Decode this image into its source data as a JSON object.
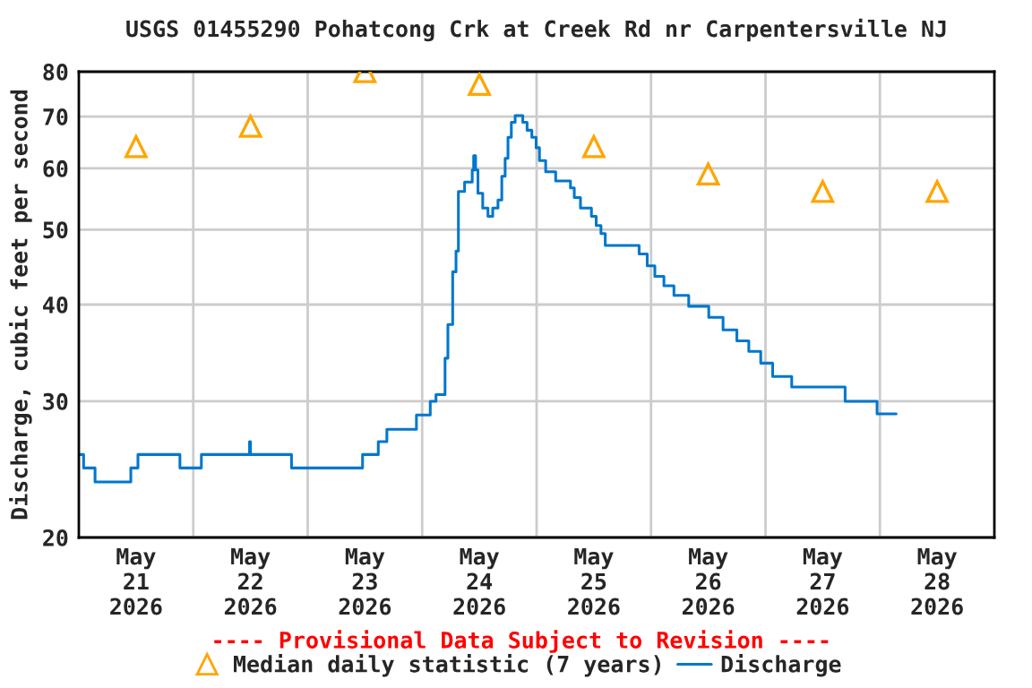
{
  "chart_data": {
    "type": "step",
    "title": "USGS 01455290 Pohatcong Crk at Creek Rd nr Carpentersville NJ",
    "ylabel": "Discharge, cubic feet per second",
    "annotations": [
      "---- Provisional Data Subject to Revision ----"
    ],
    "log": "y",
    "grid": true,
    "legend": "bottom",
    "xlim": [
      "2026-05-21T00:00",
      "2026-05-29T00:00"
    ],
    "xticks": [
      {
        "value": "2026-05-21T12:00",
        "label": "May\n21\n2026"
      },
      {
        "value": "2026-05-22T12:00",
        "label": "May\n22\n2026"
      },
      {
        "value": "2026-05-23T12:00",
        "label": "May\n23\n2026"
      },
      {
        "value": "2026-05-24T12:00",
        "label": "May\n24\n2026"
      },
      {
        "value": "2026-05-25T12:00",
        "label": "May\n25\n2026"
      },
      {
        "value": "2026-05-26T12:00",
        "label": "May\n26\n2026"
      },
      {
        "value": "2026-05-27T12:00",
        "label": "May\n27\n2026"
      },
      {
        "value": "2026-05-28T12:00",
        "label": "May\n28\n2026"
      },
      {
        "value": "2026-05-22T00:00",
        "label": null
      },
      {
        "value": "2026-05-23T00:00",
        "label": null
      },
      {
        "value": "2026-05-24T00:00",
        "label": null
      },
      {
        "value": "2026-05-25T00:00",
        "label": null
      },
      {
        "value": "2026-05-26T00:00",
        "label": null
      },
      {
        "value": "2026-05-27T00:00",
        "label": null
      },
      {
        "value": "2026-05-28T00:00",
        "label": null
      }
    ],
    "ylim": [
      20,
      80
    ],
    "yticks": [
      20,
      30,
      40,
      50,
      60,
      70,
      80
    ],
    "series": [
      {
        "name": "Median daily statistic (7 years)",
        "type": "scatter",
        "marker": "triangle",
        "color": "#ffa500",
        "x": [
          "2026-05-21T12:00",
          "2026-05-22T12:00",
          "2026-05-23T12:00",
          "2026-05-24T12:00",
          "2026-05-25T12:00",
          "2026-05-26T12:00",
          "2026-05-27T12:00",
          "2026-05-28T12:00"
        ],
        "values": [
          64,
          68,
          80,
          77,
          64,
          59,
          56,
          56
        ]
      },
      {
        "name": "Discharge",
        "color": "#0077cc",
        "x": [
          "2026-05-21T00:00",
          "2026-05-21T01:00",
          "2026-05-21T03:24",
          "2026-05-21T10:54",
          "2026-05-21T12:24",
          "2026-05-21T21:12",
          "2026-05-22T01:42",
          "2026-05-22T11:48",
          "2026-05-22T12:00",
          "2026-05-22T20:36",
          "2026-05-23T11:30",
          "2026-05-23T14:48",
          "2026-05-23T16:36",
          "2026-05-23T22:48",
          "2026-05-24T01:42",
          "2026-05-24T02:54",
          "2026-05-24T04:48",
          "2026-05-24T05:24",
          "2026-05-24T06:24",
          "2026-05-24T07:06",
          "2026-05-24T07:36",
          "2026-05-24T08:54",
          "2026-05-24T10:30",
          "2026-05-24T10:48",
          "2026-05-24T11:12",
          "2026-05-24T11:42",
          "2026-05-24T12:42",
          "2026-05-24T13:48",
          "2026-05-24T14:48",
          "2026-05-24T15:54",
          "2026-05-24T16:42",
          "2026-05-24T17:24",
          "2026-05-24T18:00",
          "2026-05-24T18:42",
          "2026-05-24T19:30",
          "2026-05-24T21:06",
          "2026-05-24T22:00",
          "2026-05-24T23:00",
          "2026-05-24T23:54",
          "2026-05-25T00:36",
          "2026-05-25T01:54",
          "2026-05-25T04:00",
          "2026-05-25T07:06",
          "2026-05-25T07:54",
          "2026-05-25T09:12",
          "2026-05-25T11:30",
          "2026-05-25T12:30",
          "2026-05-25T13:30",
          "2026-05-25T14:24",
          "2026-05-25T21:30",
          "2026-05-25T23:12",
          "2026-05-26T00:48",
          "2026-05-26T02:42",
          "2026-05-26T04:48",
          "2026-05-26T07:54",
          "2026-05-26T12:06",
          "2026-05-26T15:06",
          "2026-05-26T18:00",
          "2026-05-26T20:30",
          "2026-05-26T23:00",
          "2026-05-27T01:30",
          "2026-05-27T05:30",
          "2026-05-27T16:42",
          "2026-05-27T23:24",
          "2026-05-28T03:24"
        ],
        "values": [
          25.6,
          24.6,
          23.6,
          24.6,
          25.6,
          24.6,
          25.6,
          26.6,
          25.6,
          24.6,
          25.6,
          26.6,
          27.6,
          28.8,
          30.0,
          30.6,
          34.1,
          37.7,
          44.1,
          46.9,
          56.0,
          57.6,
          59.7,
          62.3,
          59.7,
          55.7,
          53.3,
          52.0,
          53.3,
          54.6,
          58.6,
          61.8,
          65.8,
          68.8,
          70.2,
          68.8,
          67.2,
          65.8,
          63.8,
          61.4,
          59.4,
          57.8,
          56.6,
          55.0,
          53.3,
          52.0,
          50.6,
          49.4,
          47.7,
          46.5,
          44.9,
          43.5,
          42.3,
          41.1,
          39.8,
          38.5,
          37.1,
          35.9,
          34.8,
          33.6,
          32.3,
          31.3,
          30.0,
          28.9,
          28.9
        ]
      }
    ]
  }
}
